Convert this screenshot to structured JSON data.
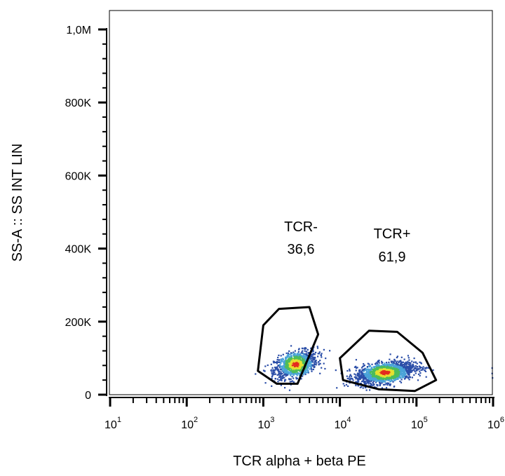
{
  "chart_data": {
    "type": "scatter",
    "subtype": "flow-cytometry-density-dot-plot",
    "title": "",
    "xlabel": "TCR alpha + beta PE",
    "ylabel": "SS-A :: SS INT LIN",
    "x_scale": "log",
    "xlim": [
      10,
      1000000
    ],
    "x_ticks": [
      {
        "base": "10",
        "exp": "1",
        "value": 10
      },
      {
        "base": "10",
        "exp": "2",
        "value": 100
      },
      {
        "base": "10",
        "exp": "3",
        "value": 1000
      },
      {
        "base": "10",
        "exp": "4",
        "value": 10000
      },
      {
        "base": "10",
        "exp": "5",
        "value": 100000
      },
      {
        "base": "10",
        "exp": "6",
        "value": 1000000
      }
    ],
    "y_scale": "linear",
    "ylim": [
      0,
      1000000
    ],
    "y_ticks": [
      {
        "label": "0",
        "value": 0
      },
      {
        "label": "200K",
        "value": 200000
      },
      {
        "label": "400K",
        "value": 400000
      },
      {
        "label": "600K",
        "value": 600000
      },
      {
        "label": "800K",
        "value": 800000
      },
      {
        "label": "1,0M",
        "value": 1000000
      }
    ],
    "grid": false,
    "legend": "none",
    "gates": [
      {
        "name": "TCR-",
        "percent": "36,6",
        "polygon": [
          [
            1600,
            235000
          ],
          [
            4000,
            240000
          ],
          [
            5200,
            165000
          ],
          [
            2800,
            30000
          ],
          [
            1500,
            30000
          ],
          [
            850,
            65000
          ],
          [
            1000,
            190000
          ]
        ],
        "population": {
          "cx": 2600,
          "cy": 85000,
          "sx_log": 0.14,
          "sy": 22000,
          "n": 1100,
          "peak_x": 2600,
          "peak_y": 85000
        }
      },
      {
        "name": "TCR+",
        "percent": "61,9",
        "polygon": [
          [
            24000,
            175000
          ],
          [
            56000,
            172000
          ],
          [
            120000,
            115000
          ],
          [
            180000,
            40000
          ],
          [
            95000,
            10000
          ],
          [
            32000,
            15000
          ],
          [
            11000,
            40000
          ],
          [
            10000,
            100000
          ]
        ],
        "population": {
          "cx": 38000,
          "cy": 62000,
          "sx_log": 0.19,
          "sy": 18000,
          "n": 1700,
          "peak_x": 38000,
          "peak_y": 62000
        }
      }
    ],
    "colors": {
      "sparse": "#2b4ea8",
      "low": "#4aa3d8",
      "mid": "#4cbc5a",
      "high": "#e6e030",
      "peak": "#e52b1f",
      "gate": "#000000"
    }
  }
}
